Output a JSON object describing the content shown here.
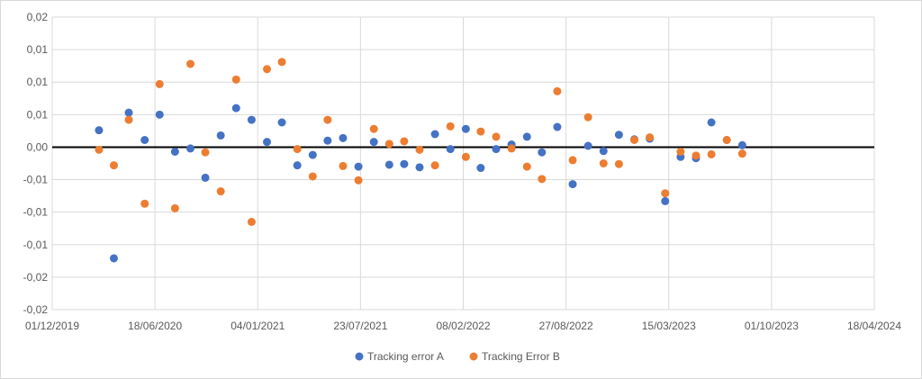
{
  "chart_data": {
    "type": "scatter",
    "title": "",
    "xlabel": "",
    "ylabel": "",
    "x_axis": {
      "type": "date",
      "ticks": [
        "01/12/2019",
        "18/06/2020",
        "04/01/2021",
        "23/07/2021",
        "08/02/2022",
        "27/08/2022",
        "15/03/2023",
        "01/10/2023",
        "18/04/2024"
      ],
      "range": [
        "2019-12-01",
        "2024-04-18"
      ]
    },
    "y_axis": {
      "ylim": [
        -0.025,
        0.02
      ],
      "ticks": [
        {
          "value": 0.02,
          "label": "0,02"
        },
        {
          "value": 0.015,
          "label": "0,01"
        },
        {
          "value": 0.01,
          "label": "0,01"
        },
        {
          "value": 0.005,
          "label": "0,01"
        },
        {
          "value": 0.0,
          "label": "0,00"
        },
        {
          "value": -0.005,
          "label": "-0,01"
        },
        {
          "value": -0.01,
          "label": "-0,01"
        },
        {
          "value": -0.015,
          "label": "-0,01"
        },
        {
          "value": -0.02,
          "label": "-0,02"
        },
        {
          "value": -0.025,
          "label": "-0,02"
        }
      ]
    },
    "grid": true,
    "zero_line": true,
    "legend_position": "bottom",
    "series": [
      {
        "name": "Tracking error A",
        "color": "#4472C4",
        "points": [
          [
            "2020-03-01",
            0.0026
          ],
          [
            "2020-03-30",
            -0.0171
          ],
          [
            "2020-04-28",
            0.0053
          ],
          [
            "2020-05-29",
            0.0011
          ],
          [
            "2020-06-27",
            0.005
          ],
          [
            "2020-07-27",
            -0.0007
          ],
          [
            "2020-08-26",
            -0.0002
          ],
          [
            "2020-09-24",
            -0.0047
          ],
          [
            "2020-10-24",
            0.0018
          ],
          [
            "2020-11-23",
            0.006
          ],
          [
            "2020-12-23",
            0.0042
          ],
          [
            "2021-01-22",
            0.0008
          ],
          [
            "2021-02-20",
            0.0038
          ],
          [
            "2021-03-22",
            -0.0028
          ],
          [
            "2021-04-21",
            -0.0012
          ],
          [
            "2021-05-20",
            0.001
          ],
          [
            "2021-06-19",
            0.0014
          ],
          [
            "2021-07-19",
            -0.003
          ],
          [
            "2021-08-18",
            0.0008
          ],
          [
            "2021-09-17",
            -0.0027
          ],
          [
            "2021-10-16",
            -0.0026
          ],
          [
            "2021-11-15",
            -0.0031
          ],
          [
            "2021-12-15",
            0.002
          ],
          [
            "2022-01-14",
            -0.0003
          ],
          [
            "2022-02-13",
            0.0028
          ],
          [
            "2022-03-14",
            -0.0032
          ],
          [
            "2022-04-13",
            -0.0003
          ],
          [
            "2022-05-13",
            0.0004
          ],
          [
            "2022-06-12",
            0.0016
          ],
          [
            "2022-07-11",
            -0.0008
          ],
          [
            "2022-08-10",
            0.0031
          ],
          [
            "2022-09-09",
            -0.0057
          ],
          [
            "2022-10-09",
            0.0002
          ],
          [
            "2022-11-08",
            -0.0006
          ],
          [
            "2022-12-08",
            0.0019
          ],
          [
            "2023-01-07",
            0.0012
          ],
          [
            "2023-02-06",
            0.0013
          ],
          [
            "2023-03-08",
            -0.0083
          ],
          [
            "2023-04-07",
            -0.0015
          ],
          [
            "2023-05-07",
            -0.0017
          ],
          [
            "2023-06-06",
            0.0038
          ],
          [
            "2023-07-06",
            0.0011
          ],
          [
            "2023-08-05",
            0.0003
          ]
        ]
      },
      {
        "name": "Tracking Error B",
        "color": "#ED7D31",
        "points": [
          [
            "2020-03-01",
            -0.0004
          ],
          [
            "2020-03-30",
            -0.0028
          ],
          [
            "2020-04-28",
            0.0042
          ],
          [
            "2020-05-29",
            -0.0087
          ],
          [
            "2020-06-27",
            0.0097
          ],
          [
            "2020-07-27",
            -0.0094
          ],
          [
            "2020-08-26",
            0.0128
          ],
          [
            "2020-09-24",
            -0.0008
          ],
          [
            "2020-10-24",
            -0.0068
          ],
          [
            "2020-11-23",
            0.0104
          ],
          [
            "2020-12-23",
            -0.0115
          ],
          [
            "2021-01-22",
            0.012
          ],
          [
            "2021-02-20",
            0.0131
          ],
          [
            "2021-03-22",
            -0.0003
          ],
          [
            "2021-04-21",
            -0.0045
          ],
          [
            "2021-05-20",
            0.0042
          ],
          [
            "2021-06-19",
            -0.0029
          ],
          [
            "2021-07-19",
            -0.0051
          ],
          [
            "2021-08-18",
            0.0028
          ],
          [
            "2021-09-17",
            0.0005
          ],
          [
            "2021-10-16",
            0.0009
          ],
          [
            "2021-11-15",
            -0.0004
          ],
          [
            "2021-12-15",
            -0.0028
          ],
          [
            "2022-01-14",
            0.0032
          ],
          [
            "2022-02-13",
            -0.0015
          ],
          [
            "2022-03-14",
            0.0024
          ],
          [
            "2022-04-13",
            0.0016
          ],
          [
            "2022-05-13",
            -0.0002
          ],
          [
            "2022-06-12",
            -0.003
          ],
          [
            "2022-07-11",
            -0.0049
          ],
          [
            "2022-08-10",
            0.0086
          ],
          [
            "2022-09-09",
            -0.002
          ],
          [
            "2022-10-09",
            0.0046
          ],
          [
            "2022-11-08",
            -0.0025
          ],
          [
            "2022-12-08",
            -0.0026
          ],
          [
            "2023-01-07",
            0.0011
          ],
          [
            "2023-02-06",
            0.0015
          ],
          [
            "2023-03-08",
            -0.0071
          ],
          [
            "2023-04-07",
            -0.0007
          ],
          [
            "2023-05-07",
            -0.0013
          ],
          [
            "2023-06-06",
            -0.0011
          ],
          [
            "2023-07-06",
            0.0011
          ],
          [
            "2023-08-05",
            -0.001
          ]
        ]
      }
    ]
  }
}
